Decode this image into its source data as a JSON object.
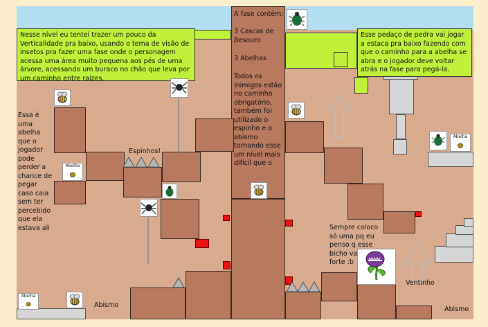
{
  "notes": {
    "intro": "Nesse nível eu tentei trazer um pouco da Verticalidade pra baixo, usando o tema de visão de insetos pra fazer uma fase onde o personagem acessa uma área muito pequena aos pés de uma árvore, acessando um buraco no chão que leva por um caminho entre raízes.",
    "phase_title": "A fase contém:",
    "phase_beetles": "3 Cascas de Besouro",
    "phase_bees": "3 Abelhas",
    "phase_enemies": "Todos os inimigos estão no caminho obrigatório, também foi utilizado o espinho e o abismo tornando esse um nível mais difícil que o",
    "rock": "Esse pedaço de pedra vai jogar a estaca pra baixo fazendo com que o caminho para a abelha se abra e o jogador deve voltar atrás na fase para pegá-la.",
    "bee_note": "Essa é uma abelha que o jogador pode perder a chance de pegar caso caia sem ter percebido que ela estava ali",
    "spikes_label": "Espinhos!",
    "plant_note": "Sempre coloco só uma pq eu penso q esse bicho vai ser forte :b",
    "wind_label": "Ventinho",
    "abyss_left": "Abismo",
    "abyss_right": "Abismo"
  },
  "cards": {
    "abelha": "Abelha"
  },
  "colors": {
    "background": "#fbeeca",
    "ground": "#d8ab8e",
    "block": "#b87a5e",
    "green": "#bff03a",
    "sky": "#b4dff2",
    "red": "#ee1111"
  }
}
